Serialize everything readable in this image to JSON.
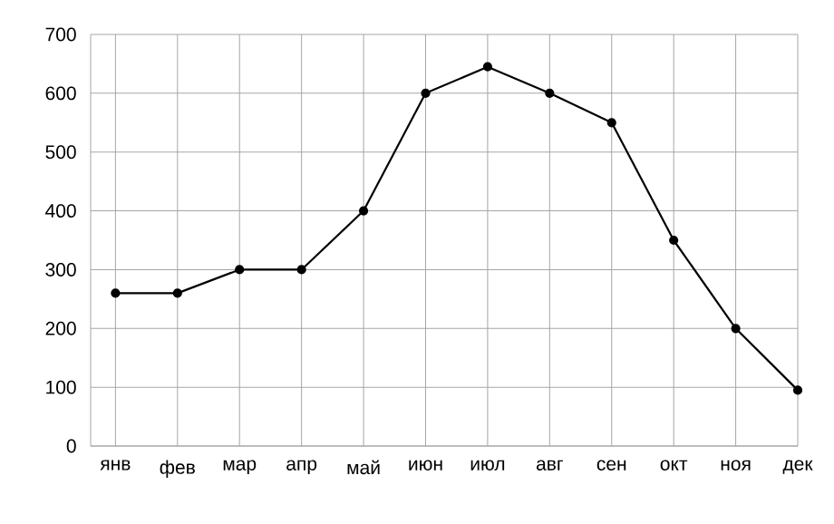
{
  "chart_data": {
    "type": "line",
    "categories": [
      "янв",
      "фев",
      "мар",
      "апр",
      "май",
      "июн",
      "июл",
      "авг",
      "сен",
      "окт",
      "ноя",
      "дек"
    ],
    "series": [
      {
        "color": "#000000",
        "values": [
          260,
          260,
          300,
          300,
          400,
          600,
          645,
          600,
          550,
          350,
          200,
          95
        ]
      }
    ],
    "ylim": [
      0,
      700
    ],
    "yticks": [
      0,
      100,
      200,
      300,
      400,
      500,
      600,
      700
    ],
    "grid": true,
    "marker": "circle",
    "line_style": "solid"
  }
}
